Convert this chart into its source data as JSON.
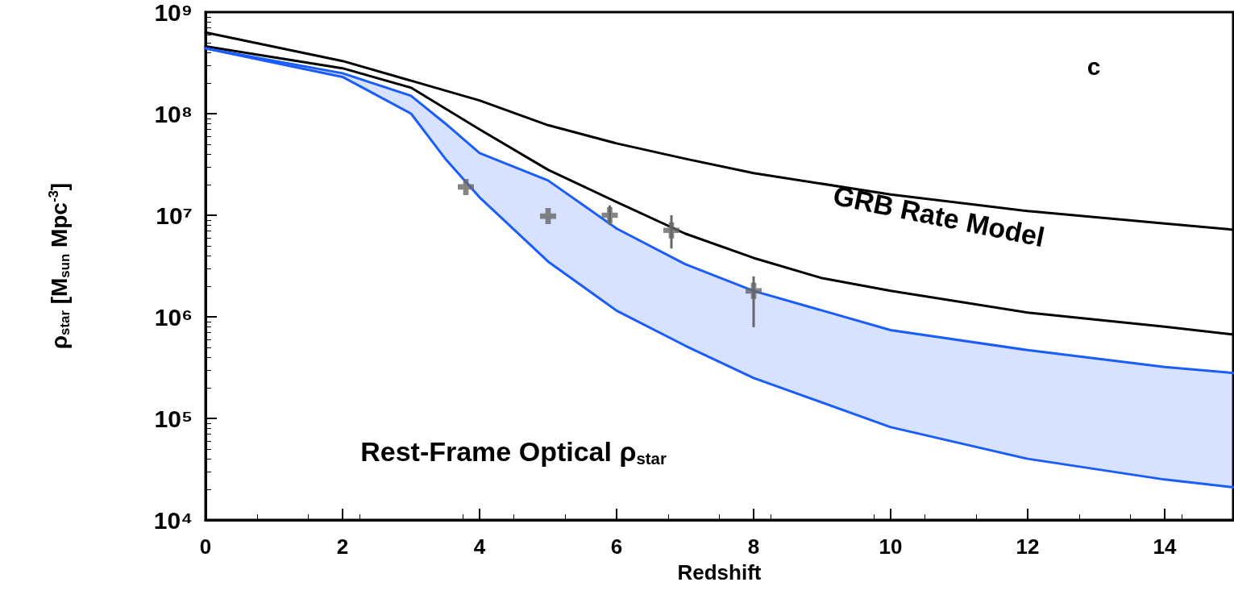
{
  "chart_data": {
    "type": "line",
    "xlabel": "Redshift",
    "ylabel": "ρ$_{star}$ [M$_{sun}$ Mpc$^{-3}$]",
    "log": "y",
    "xlim": [
      0,
      15
    ],
    "xticks": [
      0,
      2,
      4,
      6,
      8,
      10,
      12,
      14
    ],
    "ylim": [
      10000,
      1000000000
    ],
    "yticks": [
      {
        "value": 10000,
        "label": "10⁴"
      },
      {
        "value": 100000,
        "label": "10⁵"
      },
      {
        "value": 1000000,
        "label": "10⁶"
      },
      {
        "value": 10000000,
        "label": "10⁷"
      },
      {
        "value": 100000000,
        "label": "10⁸"
      },
      {
        "value": 1000000000,
        "label": "10⁹"
      }
    ],
    "grid": false,
    "marker": "none",
    "line_style": "solid",
    "series": [
      {
        "color": "#000000",
        "x": [
          0,
          2,
          4,
          5,
          6,
          7,
          8,
          10,
          12,
          14,
          15
        ],
        "values": [
          630000000,
          330000000,
          135000000,
          77000000,
          51000000,
          36000000,
          26000000,
          16000000,
          11000000,
          8300000,
          7200000
        ]
      },
      {
        "color": "#000000",
        "x": [
          0,
          2,
          3,
          4,
          5,
          6,
          7,
          8,
          9,
          10,
          12,
          14,
          15
        ],
        "values": [
          460000000,
          280000000,
          180000000,
          70000000,
          28000000,
          13500000,
          6600000,
          3800000,
          2400000,
          1800000,
          1100000,
          800000,
          670000
        ]
      },
      {
        "color": "#1a5cff",
        "x": [
          0,
          2,
          3,
          3.5,
          4,
          5,
          6,
          7,
          8,
          10,
          12,
          14,
          15
        ],
        "values": [
          440000000,
          250000000,
          150000000,
          80000000,
          41000000,
          22000000,
          7400000,
          3300000,
          1800000,
          740000,
          470000,
          320000,
          280000
        ],
        "lower": [
          440000000,
          230000000,
          100000000,
          36000000,
          15000000,
          3500000,
          1150000,
          520000,
          250000,
          82000,
          40000,
          25000,
          21000
        ],
        "upper": [
          440000000,
          250000000,
          150000000,
          80000000,
          41000000,
          22000000,
          7400000,
          3300000,
          1800000,
          740000,
          470000,
          320000,
          280000
        ]
      },
      {
        "color": "#1a5cff",
        "x": [
          0,
          2,
          3,
          3.5,
          4,
          5,
          6,
          7,
          8,
          10,
          12,
          14,
          15
        ],
        "values": [
          440000000,
          230000000,
          100000000,
          36000000,
          15000000,
          3500000,
          1150000,
          520000,
          250000,
          82000,
          40000,
          25000,
          21000
        ]
      },
      {
        "type": "scatter",
        "color": "#666666",
        "marker": "cross",
        "x": [
          3.8,
          5,
          5.9,
          6.8,
          8
        ],
        "values": [
          19000000,
          9800000,
          10000000,
          7100000,
          1800000
        ],
        "errors": [
          null,
          null,
          [
            8000000,
            12500000
          ],
          [
            4700000,
            10000000
          ],
          [
            790000,
            2500000
          ]
        ]
      }
    ],
    "annotations": [
      "c",
      "GRB Rate Model",
      "Rest-Frame Optical ρ$_{star}$"
    ]
  }
}
